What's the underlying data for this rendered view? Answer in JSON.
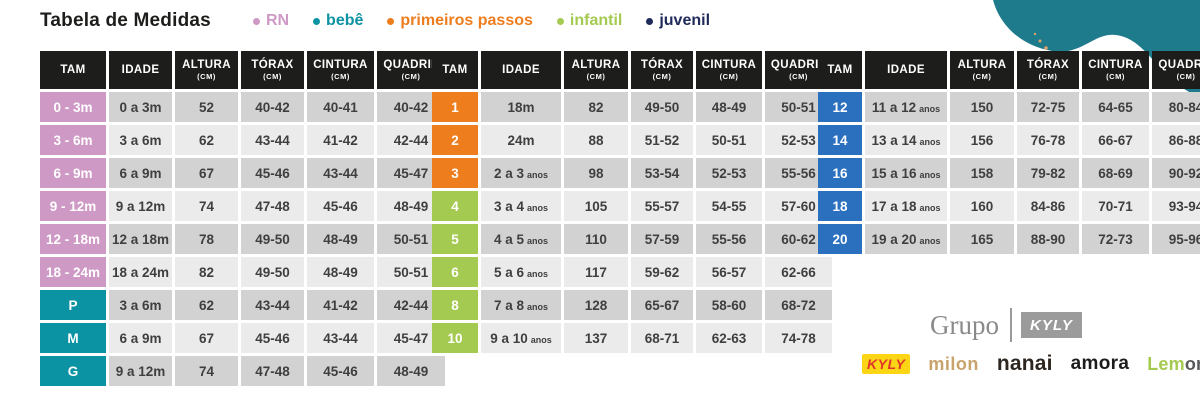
{
  "title": "Tabela de Medidas",
  "legend": [
    {
      "label": "RN",
      "color": "#cf99c5"
    },
    {
      "label": "bebê",
      "color": "#0d93a3"
    },
    {
      "label": "primeiros passos",
      "color": "#ee7d1e"
    },
    {
      "label": "infantil",
      "color": "#a5ca51"
    },
    {
      "label": "juvenil",
      "color": "#1f2a5a"
    }
  ],
  "columns": [
    {
      "label": "TAM"
    },
    {
      "label": "IDADE"
    },
    {
      "label": "ALTURA",
      "unit": "(CM)"
    },
    {
      "label": "TÓRAX",
      "unit": "(CM)"
    },
    {
      "label": "CINTURA",
      "unit": "(CM)"
    },
    {
      "label": "QUADRIL",
      "unit": "(CM)"
    }
  ],
  "group_colors": {
    "rn": "#cf99c5",
    "bebe": "#0c93a3",
    "primeiros_passos": "#ee7d1e",
    "infantil": "#a5ca51",
    "juvenil": "#2a70bf"
  },
  "colors": {
    "header_bg": "#1d1d1b",
    "row_dark": "#d2d2d2",
    "row_light": "#ebebeb",
    "blob": "#1e7b8b",
    "dots": "#dfa26b"
  },
  "tables": [
    {
      "name": "baby-sizes",
      "rows": [
        {
          "tam": "0 - 3m",
          "group": "rn",
          "idade": "0 a 3m",
          "suffix": "",
          "altura": "52",
          "torax": "40-42",
          "cintura": "40-41",
          "quadril": "40-42"
        },
        {
          "tam": "3 - 6m",
          "group": "rn",
          "idade": "3 a 6m",
          "suffix": "",
          "altura": "62",
          "torax": "43-44",
          "cintura": "41-42",
          "quadril": "42-44"
        },
        {
          "tam": "6 - 9m",
          "group": "rn",
          "idade": "6 a 9m",
          "suffix": "",
          "altura": "67",
          "torax": "45-46",
          "cintura": "43-44",
          "quadril": "45-47"
        },
        {
          "tam": "9 - 12m",
          "group": "rn",
          "idade": "9 a 12m",
          "suffix": "",
          "altura": "74",
          "torax": "47-48",
          "cintura": "45-46",
          "quadril": "48-49"
        },
        {
          "tam": "12 - 18m",
          "group": "rn",
          "idade": "12 a 18m",
          "suffix": "",
          "altura": "78",
          "torax": "49-50",
          "cintura": "48-49",
          "quadril": "50-51"
        },
        {
          "tam": "18 - 24m",
          "group": "rn",
          "idade": "18 a 24m",
          "suffix": "",
          "altura": "82",
          "torax": "49-50",
          "cintura": "48-49",
          "quadril": "50-51"
        },
        {
          "tam": "P",
          "group": "bebe",
          "idade": "3 a 6m",
          "suffix": "",
          "altura": "62",
          "torax": "43-44",
          "cintura": "41-42",
          "quadril": "42-44"
        },
        {
          "tam": "M",
          "group": "bebe",
          "idade": "6 a 9m",
          "suffix": "",
          "altura": "67",
          "torax": "45-46",
          "cintura": "43-44",
          "quadril": "45-47"
        },
        {
          "tam": "G",
          "group": "bebe",
          "idade": "9 a 12m",
          "suffix": "",
          "altura": "74",
          "torax": "47-48",
          "cintura": "45-46",
          "quadril": "48-49"
        }
      ]
    },
    {
      "name": "kids-sizes",
      "rows": [
        {
          "tam": "1",
          "group": "primeiros_passos",
          "idade": "18m",
          "suffix": "",
          "altura": "82",
          "torax": "49-50",
          "cintura": "48-49",
          "quadril": "50-51"
        },
        {
          "tam": "2",
          "group": "primeiros_passos",
          "idade": "24m",
          "suffix": "",
          "altura": "88",
          "torax": "51-52",
          "cintura": "50-51",
          "quadril": "52-53"
        },
        {
          "tam": "3",
          "group": "primeiros_passos",
          "idade": "2 a 3",
          "suffix": "anos",
          "altura": "98",
          "torax": "53-54",
          "cintura": "52-53",
          "quadril": "55-56"
        },
        {
          "tam": "4",
          "group": "infantil",
          "idade": "3 a 4",
          "suffix": "anos",
          "altura": "105",
          "torax": "55-57",
          "cintura": "54-55",
          "quadril": "57-60"
        },
        {
          "tam": "5",
          "group": "infantil",
          "idade": "4 a 5",
          "suffix": "anos",
          "altura": "110",
          "torax": "57-59",
          "cintura": "55-56",
          "quadril": "60-62"
        },
        {
          "tam": "6",
          "group": "infantil",
          "idade": "5 a 6",
          "suffix": "anos",
          "altura": "117",
          "torax": "59-62",
          "cintura": "56-57",
          "quadril": "62-66"
        },
        {
          "tam": "8",
          "group": "infantil",
          "idade": "7 a 8",
          "suffix": "anos",
          "altura": "128",
          "torax": "65-67",
          "cintura": "58-60",
          "quadril": "68-72"
        },
        {
          "tam": "10",
          "group": "infantil",
          "idade": "9 a 10",
          "suffix": "anos",
          "altura": "137",
          "torax": "68-71",
          "cintura": "62-63",
          "quadril": "74-78"
        }
      ]
    },
    {
      "name": "teen-sizes",
      "rows": [
        {
          "tam": "12",
          "group": "juvenil",
          "idade": "11 a 12",
          "suffix": "anos",
          "altura": "150",
          "torax": "72-75",
          "cintura": "64-65",
          "quadril": "80-84"
        },
        {
          "tam": "14",
          "group": "juvenil",
          "idade": "13 a 14",
          "suffix": "anos",
          "altura": "156",
          "torax": "76-78",
          "cintura": "66-67",
          "quadril": "86-88"
        },
        {
          "tam": "16",
          "group": "juvenil",
          "idade": "15 a 16",
          "suffix": "anos",
          "altura": "158",
          "torax": "79-82",
          "cintura": "68-69",
          "quadril": "90-92"
        },
        {
          "tam": "18",
          "group": "juvenil",
          "idade": "17 a 18",
          "suffix": "anos",
          "altura": "160",
          "torax": "84-86",
          "cintura": "70-71",
          "quadril": "93-94"
        },
        {
          "tam": "20",
          "group": "juvenil",
          "idade": "19 a 20",
          "suffix": "anos",
          "altura": "165",
          "torax": "88-90",
          "cintura": "72-73",
          "quadril": "95-96"
        }
      ]
    }
  ],
  "footer": {
    "grupo_label": "Grupo",
    "grupo_brand": "KYLY",
    "brands": {
      "kyly": "KYLY",
      "milon": "milon",
      "nanai": "nanai",
      "amora": "amora",
      "lemon_part1": "Lem",
      "lemon_part2": "on"
    }
  }
}
